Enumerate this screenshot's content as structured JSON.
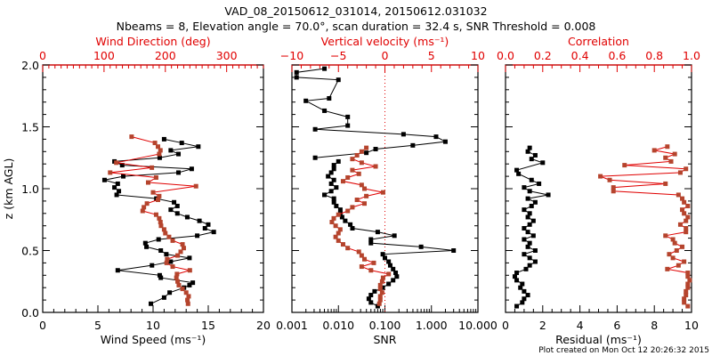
{
  "chart_data": {
    "type": "line",
    "title": "VAD_08_20150612_031014, 20150612.031032",
    "subtitle": "Nbeams = 8, Elevation angle = 70.0°, scan duration = 32.4 s, SNR Threshold = 0.008",
    "footer": "Plot created on Mon Oct 12 20:26:32 2015",
    "ylabel": "z (km AGL)",
    "ylim": [
      0,
      2.0
    ],
    "yticks": [
      "0.0",
      "0.5",
      "1.0",
      "1.5",
      "2.0"
    ],
    "panels": [
      {
        "name": "wind",
        "xlabel": "Wind Speed (ms⁻¹)",
        "xlim": [
          0,
          20
        ],
        "xticks": [
          "0",
          "5",
          "10",
          "15",
          "20"
        ],
        "top_label": "Wind Direction (deg)",
        "top_lim": [
          0,
          360
        ],
        "top_ticks": [
          "0",
          "100",
          "200",
          "300"
        ],
        "series": [
          {
            "name": "Wind Speed",
            "color": "#000000",
            "axis": "bottom",
            "z": [
              0.07,
              0.12,
              0.16,
              0.2,
              0.22,
              0.24,
              0.28,
              0.3,
              0.34,
              0.38,
              0.41,
              0.44,
              0.47,
              0.5,
              0.53,
              0.56,
              0.59,
              0.62,
              0.65,
              0.68,
              0.71,
              0.74,
              0.77,
              0.8,
              0.83,
              0.86,
              0.89,
              0.92,
              0.95,
              0.98,
              1.01,
              1.04,
              1.07,
              1.1,
              1.13,
              1.16,
              1.19,
              1.22,
              1.25,
              1.28,
              1.31,
              1.34,
              1.37,
              1.4
            ],
            "values": [
              9.8,
              11.0,
              11.5,
              12.8,
              13.3,
              13.6,
              10.7,
              10.6,
              6.8,
              9.9,
              11.6,
              13.3,
              11.2,
              10.7,
              9.4,
              9.3,
              10.5,
              14.0,
              15.5,
              14.7,
              15.0,
              14.2,
              13.1,
              12.2,
              11.6,
              12.2,
              11.9,
              10.3,
              6.7,
              6.9,
              6.5,
              6.8,
              5.6,
              7.3,
              12.3,
              13.5,
              7.2,
              6.5,
              10.6,
              12.3,
              11.6,
              14.1,
              12.6,
              11.0
            ]
          },
          {
            "name": "Wind Direction",
            "color": "#b5442d",
            "axis": "top",
            "z": [
              0.07,
              0.1,
              0.13,
              0.16,
              0.19,
              0.22,
              0.25,
              0.28,
              0.31,
              0.34,
              0.37,
              0.4,
              0.43,
              0.46,
              0.49,
              0.52,
              0.55,
              0.58,
              0.61,
              0.64,
              0.67,
              0.7,
              0.73,
              0.76,
              0.79,
              0.82,
              0.85,
              0.88,
              0.91,
              0.94,
              0.97,
              1.02,
              1.05,
              1.09,
              1.13,
              1.17,
              1.21,
              1.28,
              1.31,
              1.34,
              1.37,
              1.42
            ],
            "values": [
              237,
              236,
              238,
              234,
              228,
              222,
              220,
              218,
              219,
              240,
              212,
              202,
              203,
              220,
              225,
              230,
              228,
              212,
              206,
              200,
              198,
              193,
              192,
              190,
              185,
              163,
              165,
              170,
              188,
              190,
              180,
              250,
              172,
              185,
              110,
              178,
              120,
              190,
              192,
              188,
              183,
              145
            ]
          }
        ]
      },
      {
        "name": "snr",
        "xlabel": "SNR",
        "xscale": "log",
        "xlim": [
          0.001,
          10.0
        ],
        "xticks": [
          "0.001",
          "0.010",
          "0.100",
          "1.000",
          "10.000"
        ],
        "top_label": "Vertical velocity (ms⁻¹)",
        "top_lim": [
          -10,
          10
        ],
        "top_ticks": [
          "-10",
          "-5",
          "0",
          "5",
          "10"
        ],
        "zero_line": 0,
        "series": [
          {
            "name": "SNR",
            "color": "#000000",
            "axis": "bottom",
            "z": [
              0.05,
              0.08,
              0.11,
              0.14,
              0.17,
              0.2,
              0.23,
              0.26,
              0.29,
              0.32,
              0.35,
              0.38,
              0.41,
              0.44,
              0.47,
              0.5,
              0.53,
              0.56,
              0.59,
              0.62,
              0.65,
              0.68,
              0.71,
              0.74,
              0.77,
              0.8,
              0.83,
              0.86,
              0.89,
              0.92,
              0.95,
              0.98,
              1.01,
              1.04,
              1.07,
              1.1,
              1.13,
              1.16,
              1.19,
              1.22
            ],
            "values": [
              0.07,
              0.05,
              0.045,
              0.05,
              0.06,
              0.09,
              0.12,
              0.15,
              0.18,
              0.17,
              0.15,
              0.13,
              0.12,
              0.1,
              0.09,
              3.0,
              0.6,
              0.05,
              0.05,
              0.16,
              0.07,
              0.02,
              0.018,
              0.014,
              0.012,
              0.011,
              0.011,
              0.009,
              0.008,
              0.008,
              0.005,
              0.007,
              0.009,
              0.007,
              0.008,
              0.006,
              0.007,
              0.008,
              0.008,
              0.01
            ]
          },
          {
            "name": "Vertical velocity",
            "color": "#000000",
            "axis": "top",
            "z": [
              1.25,
              1.29,
              1.32,
              1.35,
              1.38,
              1.42,
              1.44,
              1.48,
              1.51,
              1.58,
              1.63,
              1.71,
              1.73,
              1.88,
              1.9,
              1.94,
              1.97
            ],
            "values": [
              -7.5,
              -2.0,
              -1.0,
              3.0,
              6.5,
              5.5,
              2.0,
              -7.5,
              -4.0,
              -4.0,
              -6.5,
              -8.5,
              -6.0,
              -5.0,
              -9.5,
              -9.5,
              -6.5
            ]
          },
          {
            "name": "Vertical velocity (red)",
            "color": "#b5442d",
            "axis": "top",
            "z": [
              0.07,
              0.1,
              0.13,
              0.16,
              0.19,
              0.22,
              0.25,
              0.28,
              0.31,
              0.34,
              0.37,
              0.4,
              0.43,
              0.46,
              0.49,
              0.52,
              0.55,
              0.58,
              0.61,
              0.64,
              0.67,
              0.7,
              0.73,
              0.76,
              0.79,
              0.82,
              0.85,
              0.88,
              0.91,
              0.94,
              0.97,
              1.0,
              1.03,
              1.06,
              1.09,
              1.12,
              1.15,
              1.18,
              1.21,
              1.24,
              1.27,
              1.3,
              1.33
            ],
            "values": [
              -0.6,
              -0.5,
              -0.5,
              -0.3,
              -0.5,
              -0.5,
              -0.3,
              -0.2,
              0.4,
              -1.5,
              -2.5,
              -1.2,
              -2.2,
              -2.5,
              -2.8,
              -4.0,
              -4.5,
              -5.0,
              -5.3,
              -5.0,
              -4.8,
              -5.3,
              -5.7,
              -5.5,
              -5.0,
              -4.0,
              -3.5,
              -2.2,
              -3.0,
              -2.0,
              -0.2,
              -2.2,
              -2.5,
              -4.5,
              -4.0,
              -2.8,
              -3.5,
              -1.0,
              -2.5,
              -3.5,
              -3.0,
              -2.5,
              -2.0
            ]
          }
        ]
      },
      {
        "name": "residual",
        "xlabel": "Residual (ms⁻¹)",
        "xlim": [
          0,
          10
        ],
        "xticks": [
          "0",
          "2",
          "4",
          "6",
          "8",
          "10"
        ],
        "top_label": "Correlation",
        "top_lim": [
          0.0,
          1.0
        ],
        "top_ticks": [
          "0.0",
          "0.2",
          "0.4",
          "0.6",
          "0.8",
          "1.0"
        ],
        "series": [
          {
            "name": "Residual",
            "color": "#000000",
            "axis": "bottom",
            "z": [
              0.05,
              0.08,
              0.11,
              0.14,
              0.17,
              0.2,
              0.23,
              0.26,
              0.29,
              0.32,
              0.35,
              0.38,
              0.41,
              0.44,
              0.47,
              0.5,
              0.53,
              0.56,
              0.59,
              0.62,
              0.65,
              0.68,
              0.71,
              0.74,
              0.77,
              0.8,
              0.83,
              0.86,
              0.89,
              0.92,
              0.95,
              0.98,
              1.01,
              1.04,
              1.07,
              1.12,
              1.15,
              1.21,
              1.24,
              1.27,
              1.3,
              1.33
            ],
            "values": [
              0.6,
              0.9,
              1.0,
              1.2,
              1.0,
              0.8,
              0.9,
              0.6,
              0.5,
              0.6,
              1.1,
              1.3,
              1.6,
              1.3,
              1.0,
              1.6,
              1.2,
              1.3,
              1.0,
              1.5,
              1.2,
              1.0,
              1.3,
              1.5,
              1.2,
              1.3,
              1.0,
              1.4,
              1.6,
              1.2,
              2.3,
              1.3,
              1.0,
              1.8,
              1.4,
              0.7,
              0.6,
              2.0,
              1.4,
              1.6,
              1.2,
              1.3
            ]
          },
          {
            "name": "Correlation",
            "color": "#b5442d",
            "axis": "top",
            "z": [
              0.05,
              0.08,
              0.11,
              0.14,
              0.17,
              0.2,
              0.23,
              0.26,
              0.29,
              0.32,
              0.35,
              0.38,
              0.41,
              0.44,
              0.47,
              0.5,
              0.53,
              0.56,
              0.59,
              0.62,
              0.65,
              0.68,
              0.71,
              0.74,
              0.77,
              0.8,
              0.83,
              0.86,
              0.89,
              0.92,
              0.95,
              0.98,
              1.01,
              1.04,
              1.07,
              1.1,
              1.13,
              1.16,
              1.19,
              1.22,
              1.25,
              1.28,
              1.31,
              1.34
            ],
            "values": [
              0.98,
              0.96,
              0.96,
              0.97,
              0.97,
              0.98,
              0.98,
              0.99,
              0.98,
              0.98,
              0.87,
              0.93,
              0.96,
              0.9,
              0.88,
              0.92,
              0.95,
              0.91,
              0.9,
              0.86,
              0.97,
              0.97,
              0.94,
              0.97,
              0.98,
              0.96,
              0.95,
              0.98,
              0.96,
              0.95,
              0.93,
              0.58,
              0.58,
              0.86,
              0.56,
              0.51,
              0.94,
              0.97,
              0.64,
              0.89,
              0.86,
              0.91,
              0.8,
              0.87
            ]
          }
        ]
      }
    ]
  }
}
